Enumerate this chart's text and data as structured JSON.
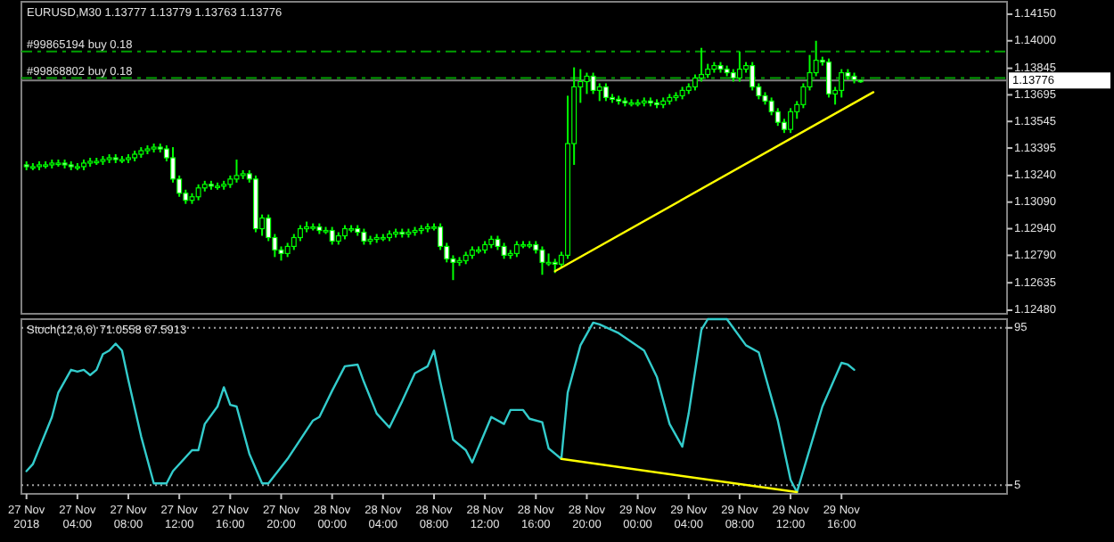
{
  "chart_data": [
    {
      "type": "candlestick",
      "title": "EURUSD,M30 1.13777 1.13779 1.13763 1.13776",
      "color": "#00ff00",
      "tick_labels": "y",
      "xlim": [
        "2018-11-26T23:36",
        "2018-11-30T05:00"
      ],
      "ylim": [
        1.1246,
        1.1422
      ],
      "yticks": [
        {
          "value": 1.1248,
          "label": "1.12480"
        },
        {
          "value": 1.12635,
          "label": "1.12635"
        },
        {
          "value": 1.1279,
          "label": "1.12790"
        },
        {
          "value": 1.1294,
          "label": "1.12940"
        },
        {
          "value": 1.1309,
          "label": "1.13090"
        },
        {
          "value": 1.1324,
          "label": "1.13240"
        },
        {
          "value": 1.13395,
          "label": "1.13395"
        },
        {
          "value": 1.13545,
          "label": "1.13545"
        },
        {
          "value": 1.13695,
          "label": "1.13695"
        },
        {
          "value": 1.13845,
          "label": "1.13845"
        },
        {
          "value": 1.14,
          "label": "1.14000"
        },
        {
          "value": 1.1415,
          "label": "1.14150"
        }
      ],
      "x": [
        "2018-11-27T00:00",
        "2018-11-27T00:30",
        "2018-11-27T01:00",
        "2018-11-27T01:30",
        "2018-11-27T02:00",
        "2018-11-27T02:30",
        "2018-11-27T03:00",
        "2018-11-27T03:30",
        "2018-11-27T04:00",
        "2018-11-27T04:30",
        "2018-11-27T05:00",
        "2018-11-27T05:30",
        "2018-11-27T06:00",
        "2018-11-27T06:30",
        "2018-11-27T07:00",
        "2018-11-27T07:30",
        "2018-11-27T08:00",
        "2018-11-27T08:30",
        "2018-11-27T09:00",
        "2018-11-27T09:30",
        "2018-11-27T10:00",
        "2018-11-27T10:30",
        "2018-11-27T11:00",
        "2018-11-27T11:30",
        "2018-11-27T12:00",
        "2018-11-27T12:30",
        "2018-11-27T13:00",
        "2018-11-27T13:30",
        "2018-11-27T14:00",
        "2018-11-27T14:30",
        "2018-11-27T15:00",
        "2018-11-27T15:30",
        "2018-11-27T16:00",
        "2018-11-27T16:30",
        "2018-11-27T17:00",
        "2018-11-27T17:30",
        "2018-11-27T18:00",
        "2018-11-27T18:30",
        "2018-11-27T19:00",
        "2018-11-27T19:30",
        "2018-11-27T20:00",
        "2018-11-27T20:30",
        "2018-11-27T21:00",
        "2018-11-27T21:30",
        "2018-11-27T22:00",
        "2018-11-27T22:30",
        "2018-11-27T23:00",
        "2018-11-27T23:30",
        "2018-11-28T00:00",
        "2018-11-28T00:30",
        "2018-11-28T01:00",
        "2018-11-28T01:30",
        "2018-11-28T02:00",
        "2018-11-28T02:30",
        "2018-11-28T03:00",
        "2018-11-28T03:30",
        "2018-11-28T04:00",
        "2018-11-28T04:30",
        "2018-11-28T05:00",
        "2018-11-28T05:30",
        "2018-11-28T06:00",
        "2018-11-28T06:30",
        "2018-11-28T07:00",
        "2018-11-28T07:30",
        "2018-11-28T08:00",
        "2018-11-28T08:30",
        "2018-11-28T09:00",
        "2018-11-28T09:30",
        "2018-11-28T10:00",
        "2018-11-28T10:30",
        "2018-11-28T11:00",
        "2018-11-28T11:30",
        "2018-11-28T12:00",
        "2018-11-28T12:30",
        "2018-11-28T13:00",
        "2018-11-28T13:30",
        "2018-11-28T14:00",
        "2018-11-28T14:30",
        "2018-11-28T15:00",
        "2018-11-28T15:30",
        "2018-11-28T16:00",
        "2018-11-28T16:30",
        "2018-11-28T17:00",
        "2018-11-28T17:30",
        "2018-11-28T18:00",
        "2018-11-28T18:30",
        "2018-11-28T19:00",
        "2018-11-28T19:30",
        "2018-11-28T20:00",
        "2018-11-28T20:30",
        "2018-11-28T21:00",
        "2018-11-28T21:30",
        "2018-11-28T22:00",
        "2018-11-28T22:30",
        "2018-11-28T23:00",
        "2018-11-28T23:30",
        "2018-11-29T00:00",
        "2018-11-29T00:30",
        "2018-11-29T01:00",
        "2018-11-29T01:30",
        "2018-11-29T02:00",
        "2018-11-29T02:30",
        "2018-11-29T03:00",
        "2018-11-29T03:30",
        "2018-11-29T04:00",
        "2018-11-29T04:30",
        "2018-11-29T05:00",
        "2018-11-29T05:30",
        "2018-11-29T06:00",
        "2018-11-29T06:30",
        "2018-11-29T07:00",
        "2018-11-29T07:30",
        "2018-11-29T08:00",
        "2018-11-29T08:30",
        "2018-11-29T09:00",
        "2018-11-29T09:30",
        "2018-11-29T10:00",
        "2018-11-29T10:30",
        "2018-11-29T11:00",
        "2018-11-29T11:30",
        "2018-11-29T12:00",
        "2018-11-29T12:30",
        "2018-11-29T13:00",
        "2018-11-29T13:30",
        "2018-11-29T14:00",
        "2018-11-29T14:30",
        "2018-11-29T15:00",
        "2018-11-29T15:30",
        "2018-11-29T16:00",
        "2018-11-29T16:30",
        "2018-11-29T17:00",
        "2018-11-29T17:30"
      ],
      "ohlc": [
        [
          1.133,
          1.1332,
          1.1327,
          1.1329
        ],
        [
          1.1329,
          1.1331,
          1.1327,
          1.1329
        ],
        [
          1.1329,
          1.1332,
          1.1327,
          1.133
        ],
        [
          1.133,
          1.1332,
          1.1328,
          1.133
        ],
        [
          1.133,
          1.1333,
          1.1328,
          1.1331
        ],
        [
          1.1331,
          1.1333,
          1.1329,
          1.1331
        ],
        [
          1.1331,
          1.1333,
          1.1328,
          1.133
        ],
        [
          1.133,
          1.1332,
          1.1327,
          1.1329
        ],
        [
          1.1329,
          1.1331,
          1.1327,
          1.1329
        ],
        [
          1.1329,
          1.1333,
          1.1327,
          1.1331
        ],
        [
          1.1331,
          1.1334,
          1.1329,
          1.1332
        ],
        [
          1.1332,
          1.1334,
          1.133,
          1.1332
        ],
        [
          1.1332,
          1.1335,
          1.133,
          1.1333
        ],
        [
          1.1333,
          1.1336,
          1.1331,
          1.1334
        ],
        [
          1.1334,
          1.1336,
          1.1331,
          1.1333
        ],
        [
          1.1333,
          1.1335,
          1.1331,
          1.1333
        ],
        [
          1.1333,
          1.1336,
          1.1331,
          1.1334
        ],
        [
          1.1334,
          1.1338,
          1.1332,
          1.1336
        ],
        [
          1.1336,
          1.134,
          1.1334,
          1.1338
        ],
        [
          1.1338,
          1.1341,
          1.1336,
          1.1339
        ],
        [
          1.1339,
          1.1342,
          1.1337,
          1.134
        ],
        [
          1.134,
          1.1342,
          1.1337,
          1.1339
        ],
        [
          1.1339,
          1.1341,
          1.1332,
          1.1334
        ],
        [
          1.1334,
          1.134,
          1.132,
          1.1322
        ],
        [
          1.1322,
          1.1324,
          1.1312,
          1.1314
        ],
        [
          1.1314,
          1.1316,
          1.1308,
          1.131
        ],
        [
          1.131,
          1.1314,
          1.1308,
          1.1312
        ],
        [
          1.1312,
          1.1319,
          1.131,
          1.1317
        ],
        [
          1.1317,
          1.1321,
          1.1315,
          1.1319
        ],
        [
          1.1319,
          1.1321,
          1.1316,
          1.1318
        ],
        [
          1.1318,
          1.132,
          1.1316,
          1.1318
        ],
        [
          1.1318,
          1.1321,
          1.1316,
          1.1319
        ],
        [
          1.1319,
          1.1324,
          1.1317,
          1.1322
        ],
        [
          1.1322,
          1.1333,
          1.132,
          1.1324
        ],
        [
          1.1324,
          1.1327,
          1.1322,
          1.1325
        ],
        [
          1.1325,
          1.1327,
          1.132,
          1.1322
        ],
        [
          1.1322,
          1.1324,
          1.1292,
          1.1294
        ],
        [
          1.1294,
          1.1302,
          1.129,
          1.13
        ],
        [
          1.13,
          1.1302,
          1.1287,
          1.1289
        ],
        [
          1.1289,
          1.1291,
          1.1278,
          1.1282
        ],
        [
          1.1282,
          1.1284,
          1.1276,
          1.128
        ],
        [
          1.128,
          1.1286,
          1.1278,
          1.1284
        ],
        [
          1.1284,
          1.1291,
          1.1282,
          1.1289
        ],
        [
          1.1289,
          1.1296,
          1.1287,
          1.1294
        ],
        [
          1.1294,
          1.1298,
          1.1292,
          1.1295
        ],
        [
          1.1295,
          1.1297,
          1.1293,
          1.1295
        ],
        [
          1.1295,
          1.1297,
          1.1291,
          1.1293
        ],
        [
          1.1293,
          1.1295,
          1.1291,
          1.1293
        ],
        [
          1.1293,
          1.1295,
          1.1285,
          1.1287
        ],
        [
          1.1287,
          1.1292,
          1.1285,
          1.129
        ],
        [
          1.129,
          1.1296,
          1.1288,
          1.1294
        ],
        [
          1.1294,
          1.1296,
          1.1292,
          1.1294
        ],
        [
          1.1294,
          1.1296,
          1.129,
          1.1292
        ],
        [
          1.1292,
          1.1294,
          1.1285,
          1.1287
        ],
        [
          1.1287,
          1.129,
          1.1285,
          1.1288
        ],
        [
          1.1288,
          1.1291,
          1.1286,
          1.1289
        ],
        [
          1.1289,
          1.1291,
          1.1287,
          1.1289
        ],
        [
          1.1289,
          1.1293,
          1.1287,
          1.1291
        ],
        [
          1.1291,
          1.1294,
          1.1289,
          1.1292
        ],
        [
          1.1292,
          1.1294,
          1.1289,
          1.1291
        ],
        [
          1.1291,
          1.1294,
          1.1289,
          1.1292
        ],
        [
          1.1292,
          1.1295,
          1.129,
          1.1293
        ],
        [
          1.1293,
          1.1296,
          1.1291,
          1.1294
        ],
        [
          1.1294,
          1.1297,
          1.1292,
          1.1295
        ],
        [
          1.1295,
          1.1297,
          1.1293,
          1.1295
        ],
        [
          1.1295,
          1.1297,
          1.1282,
          1.1284
        ],
        [
          1.1284,
          1.1286,
          1.1275,
          1.1277
        ],
        [
          1.1277,
          1.1279,
          1.1265,
          1.1275
        ],
        [
          1.1275,
          1.1278,
          1.1273,
          1.1276
        ],
        [
          1.1276,
          1.1281,
          1.1274,
          1.1279
        ],
        [
          1.1279,
          1.1284,
          1.1277,
          1.1282
        ],
        [
          1.1282,
          1.1284,
          1.128,
          1.1282
        ],
        [
          1.1282,
          1.1287,
          1.128,
          1.1285
        ],
        [
          1.1285,
          1.129,
          1.1283,
          1.1288
        ],
        [
          1.1288,
          1.129,
          1.1282,
          1.1284
        ],
        [
          1.1284,
          1.1286,
          1.1277,
          1.1279
        ],
        [
          1.1279,
          1.1282,
          1.1277,
          1.128
        ],
        [
          1.128,
          1.1287,
          1.1278,
          1.1285
        ],
        [
          1.1285,
          1.1287,
          1.1283,
          1.1285
        ],
        [
          1.1285,
          1.1287,
          1.1283,
          1.1285
        ],
        [
          1.1285,
          1.1287,
          1.128,
          1.1282
        ],
        [
          1.1282,
          1.1284,
          1.1268,
          1.1275
        ],
        [
          1.1275,
          1.128,
          1.1273,
          1.1275
        ],
        [
          1.1275,
          1.1277,
          1.1269,
          1.1274
        ],
        [
          1.1274,
          1.1281,
          1.1272,
          1.1279
        ],
        [
          1.1279,
          1.1369,
          1.1277,
          1.1342
        ],
        [
          1.1342,
          1.1385,
          1.133,
          1.1374
        ],
        [
          1.1374,
          1.1384,
          1.1365,
          1.1377
        ],
        [
          1.1377,
          1.1382,
          1.137,
          1.138
        ],
        [
          1.138,
          1.1382,
          1.137,
          1.1372
        ],
        [
          1.1372,
          1.1376,
          1.1366,
          1.1374
        ],
        [
          1.1374,
          1.1376,
          1.1366,
          1.1368
        ],
        [
          1.1368,
          1.137,
          1.1365,
          1.1367
        ],
        [
          1.1367,
          1.1369,
          1.1364,
          1.1366
        ],
        [
          1.1366,
          1.1368,
          1.1363,
          1.1365
        ],
        [
          1.1365,
          1.1367,
          1.1363,
          1.1365
        ],
        [
          1.1365,
          1.1367,
          1.1363,
          1.1365
        ],
        [
          1.1365,
          1.1368,
          1.1363,
          1.1366
        ],
        [
          1.1366,
          1.1368,
          1.1363,
          1.1365
        ],
        [
          1.1365,
          1.1367,
          1.1362,
          1.1364
        ],
        [
          1.1364,
          1.1368,
          1.1362,
          1.1366
        ],
        [
          1.1366,
          1.137,
          1.1364,
          1.1368
        ],
        [
          1.1368,
          1.1371,
          1.1366,
          1.1369
        ],
        [
          1.1369,
          1.1374,
          1.1367,
          1.1372
        ],
        [
          1.1372,
          1.1376,
          1.137,
          1.1374
        ],
        [
          1.1374,
          1.1381,
          1.1372,
          1.1379
        ],
        [
          1.1379,
          1.1396,
          1.1377,
          1.1381
        ],
        [
          1.1381,
          1.1387,
          1.1379,
          1.1384
        ],
        [
          1.1384,
          1.1388,
          1.1382,
          1.1386
        ],
        [
          1.1386,
          1.1388,
          1.1382,
          1.1384
        ],
        [
          1.1384,
          1.1386,
          1.138,
          1.1382
        ],
        [
          1.1382,
          1.1384,
          1.1377,
          1.1379
        ],
        [
          1.1379,
          1.1394,
          1.1377,
          1.1384
        ],
        [
          1.1384,
          1.1388,
          1.1382,
          1.1386
        ],
        [
          1.1386,
          1.1388,
          1.1372,
          1.1374
        ],
        [
          1.1374,
          1.1376,
          1.1367,
          1.1369
        ],
        [
          1.1369,
          1.1371,
          1.1364,
          1.1366
        ],
        [
          1.1366,
          1.1368,
          1.1358,
          1.136
        ],
        [
          1.136,
          1.1362,
          1.1352,
          1.1354
        ],
        [
          1.1354,
          1.1356,
          1.1348,
          1.135
        ],
        [
          1.135,
          1.1362,
          1.1348,
          1.136
        ],
        [
          1.136,
          1.1366,
          1.1356,
          1.1364
        ],
        [
          1.1364,
          1.1376,
          1.1362,
          1.1374
        ],
        [
          1.1374,
          1.1392,
          1.1372,
          1.1382
        ],
        [
          1.1382,
          1.14,
          1.138,
          1.1389
        ],
        [
          1.1389,
          1.1391,
          1.1386,
          1.1388
        ],
        [
          1.1388,
          1.139,
          1.1368,
          1.137
        ],
        [
          1.137,
          1.1374,
          1.1364,
          1.1372
        ],
        [
          1.1372,
          1.1384,
          1.1368,
          1.1382
        ],
        [
          1.1382,
          1.1384,
          1.1378,
          1.138
        ],
        [
          1.138,
          1.1382,
          1.1376,
          1.1378
        ],
        [
          1.13777,
          1.13779,
          1.13763,
          1.13776
        ]
      ],
      "series": [
        {
          "type": "line",
          "x": [
            "2018-11-28T17:30",
            "2018-11-29T18:30"
          ],
          "values": [
            1.127,
            1.1371
          ],
          "color": "#ffff00"
        }
      ],
      "ref_lines": [
        {
          "axis": "y",
          "value": 1.1394,
          "label": "#99865194 buy 0.18",
          "color": "#00a000",
          "line_style": "dashed"
        },
        {
          "axis": "y",
          "value": 1.1379,
          "label": "#99868802 buy 0.18",
          "color": "#00a000",
          "line_style": "dashed"
        },
        {
          "axis": "y",
          "value": 1.13776,
          "label": "1.13776",
          "color": "#808080",
          "line_style": "solid"
        }
      ]
    },
    {
      "type": "line",
      "title": "Stoch(12,6,6) 71.0558 67.5913",
      "xlim": [
        "2018-11-26T23:36",
        "2018-11-30T05:00"
      ],
      "ylim": [
        0,
        100
      ],
      "yticks": [
        95,
        5
      ],
      "xticks": [
        {
          "value": "2018-11-27T00:00",
          "label": "27 Nov 2018"
        },
        {
          "value": "2018-11-27T04:00",
          "label": "27 Nov 04:00"
        },
        {
          "value": "2018-11-27T08:00",
          "label": "27 Nov 08:00"
        },
        {
          "value": "2018-11-27T12:00",
          "label": "27 Nov 12:00"
        },
        {
          "value": "2018-11-27T16:00",
          "label": "27 Nov 16:00"
        },
        {
          "value": "2018-11-27T20:00",
          "label": "27 Nov 20:00"
        },
        {
          "value": "2018-11-28T00:00",
          "label": "28 Nov 00:00"
        },
        {
          "value": "2018-11-28T04:00",
          "label": "28 Nov 04:00"
        },
        {
          "value": "2018-11-28T08:00",
          "label": "28 Nov 08:00"
        },
        {
          "value": "2018-11-28T12:00",
          "label": "28 Nov 12:00"
        },
        {
          "value": "2018-11-28T16:00",
          "label": "28 Nov 16:00"
        },
        {
          "value": "2018-11-28T20:00",
          "label": "28 Nov 20:00"
        },
        {
          "value": "2018-11-29T00:00",
          "label": "29 Nov 00:00"
        },
        {
          "value": "2018-11-29T04:00",
          "label": "29 Nov 04:00"
        },
        {
          "value": "2018-11-29T08:00",
          "label": "29 Nov 08:00"
        },
        {
          "value": "2018-11-29T12:00",
          "label": "29 Nov 12:00"
        },
        {
          "value": "2018-11-29T16:00",
          "label": "29 Nov 16:00"
        }
      ],
      "series": [
        {
          "color": "#33cccc",
          "x": [
            "2018-11-27T00:00",
            "2018-11-27T00:30",
            "2018-11-27T02:00",
            "2018-11-27T02:30",
            "2018-11-27T03:30",
            "2018-11-27T04:00",
            "2018-11-27T04:30",
            "2018-11-27T05:00",
            "2018-11-27T05:30",
            "2018-11-27T06:00",
            "2018-11-27T06:30",
            "2018-11-27T07:00",
            "2018-11-27T07:30",
            "2018-11-27T08:00",
            "2018-11-27T09:00",
            "2018-11-27T10:00",
            "2018-11-27T11:00",
            "2018-11-27T11:30",
            "2018-11-27T13:00",
            "2018-11-27T13:30",
            "2018-11-27T14:00",
            "2018-11-27T15:00",
            "2018-11-27T15:30",
            "2018-11-27T16:00",
            "2018-11-27T16:30",
            "2018-11-27T17:30",
            "2018-11-27T18:30",
            "2018-11-27T19:00",
            "2018-11-27T20:30",
            "2018-11-27T22:30",
            "2018-11-27T23:00",
            "2018-11-28T00:00",
            "2018-11-28T01:00",
            "2018-11-28T02:00",
            "2018-11-28T02:30",
            "2018-11-28T03:30",
            "2018-11-28T04:30",
            "2018-11-28T05:30",
            "2018-11-28T06:30",
            "2018-11-28T07:30",
            "2018-11-28T08:00",
            "2018-11-28T08:30",
            "2018-11-28T09:30",
            "2018-11-28T10:30",
            "2018-11-28T11:00",
            "2018-11-28T12:30",
            "2018-11-28T13:30",
            "2018-11-28T14:00",
            "2018-11-28T15:00",
            "2018-11-28T15:30",
            "2018-11-28T16:30",
            "2018-11-28T17:00",
            "2018-11-28T18:00",
            "2018-11-28T18:30",
            "2018-11-28T19:30",
            "2018-11-28T20:30",
            "2018-11-28T21:00",
            "2018-11-28T22:30",
            "2018-11-29T00:30",
            "2018-11-29T01:30",
            "2018-11-29T02:30",
            "2018-11-29T03:30",
            "2018-11-29T04:00",
            "2018-11-29T05:00",
            "2018-11-29T05:30",
            "2018-11-29T07:00",
            "2018-11-29T08:30",
            "2018-11-29T09:30",
            "2018-11-29T11:00",
            "2018-11-29T12:00",
            "2018-11-29T12:30",
            "2018-11-29T14:30",
            "2018-11-29T16:00",
            "2018-11-29T16:30",
            "2018-11-29T17:00"
          ],
          "values": [
            13,
            17,
            44,
            58,
            71,
            70,
            71,
            68,
            71,
            80,
            82,
            86,
            82,
            65,
            33,
            6,
            6,
            13,
            25,
            25,
            40,
            50,
            61,
            51,
            50,
            23,
            6,
            6,
            20,
            42,
            44,
            59,
            73,
            74,
            64,
            46,
            38,
            53,
            69,
            73,
            82,
            64,
            31,
            25,
            18,
            44,
            40,
            48,
            48,
            43,
            41,
            26,
            20,
            58,
            85,
            98,
            97,
            92,
            82,
            67,
            40,
            27,
            46,
            94,
            100,
            100,
            85,
            81,
            42,
            8,
            1,
            50,
            75,
            74,
            71
          ]
        },
        {
          "type": "line",
          "x": [
            "2018-11-28T18:00",
            "2018-11-29T12:30"
          ],
          "values": [
            20,
            1
          ],
          "color": "#ffff00"
        }
      ],
      "ref_lines": [
        {
          "axis": "y",
          "value": 95,
          "color": "#a0a0a0",
          "line_style": "dotted"
        },
        {
          "axis": "y",
          "value": 5,
          "color": "#a0a0a0",
          "line_style": "dotted"
        }
      ]
    }
  ]
}
